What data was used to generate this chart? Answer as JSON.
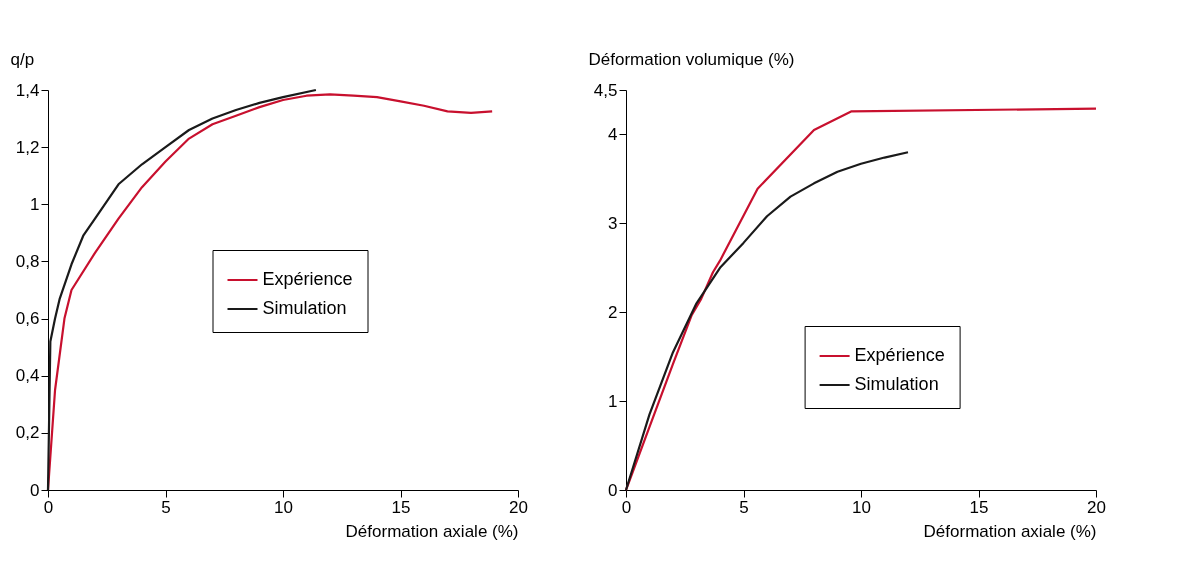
{
  "chart_data": [
    {
      "type": "line",
      "xlabel": "Déformation axiale (%)",
      "ylabel": "q/p",
      "xlim": [
        0,
        20
      ],
      "xticks": [
        0,
        5,
        10,
        15,
        20
      ],
      "ylim": [
        0,
        1.4
      ],
      "yticks": [
        0,
        {
          "value": 0.2,
          "label": "0,2"
        },
        {
          "value": 0.4,
          "label": "0,4"
        },
        {
          "value": 0.6,
          "label": "0,6"
        },
        {
          "value": 0.8,
          "label": "0,8"
        },
        1,
        {
          "value": 1.2,
          "label": "1,2"
        },
        {
          "value": 1.4,
          "label": "1,4"
        }
      ],
      "grid": false,
      "legend": "center",
      "line_style": "solid",
      "marker": "none",
      "series": [
        {
          "name": "Expérience",
          "color": "#c8102e",
          "x": [
            0,
            0.3,
            0.7,
            1,
            2,
            3,
            4,
            5,
            6,
            7,
            8,
            9,
            10,
            11,
            12,
            13,
            14,
            15,
            16,
            17,
            18,
            18.9
          ],
          "values": [
            0,
            0.35,
            0.6,
            0.7,
            0.83,
            0.95,
            1.06,
            1.15,
            1.23,
            1.28,
            1.31,
            1.34,
            1.365,
            1.38,
            1.385,
            1.38,
            1.375,
            1.36,
            1.345,
            1.325,
            1.32,
            1.325
          ]
        },
        {
          "name": "Simulation",
          "color": "#1a1a1a",
          "x": [
            0,
            0.1,
            0.3,
            0.5,
            1,
            1.5,
            2,
            3,
            4,
            5,
            6,
            7,
            8,
            9,
            10,
            11.4
          ],
          "values": [
            0,
            0.52,
            0.6,
            0.67,
            0.79,
            0.89,
            0.95,
            1.07,
            1.14,
            1.2,
            1.26,
            1.3,
            1.33,
            1.355,
            1.375,
            1.4
          ]
        }
      ]
    },
    {
      "type": "line",
      "xlabel": "Déformation axiale (%)",
      "ylabel": "Déformation volumique (%)",
      "xlim": [
        0,
        20
      ],
      "xticks": [
        0,
        5,
        10,
        15,
        20
      ],
      "ylim": [
        0,
        4.5
      ],
      "yticks": [
        0,
        1,
        2,
        3,
        4,
        {
          "value": 4.5,
          "label": "4,5"
        }
      ],
      "grid": false,
      "legend": "right",
      "line_style": "solid",
      "marker": "none",
      "series": [
        {
          "name": "Expérience",
          "color": "#c8102e",
          "x": [
            0,
            1,
            2,
            2.8,
            3.2,
            3.7,
            4.0,
            5.6,
            8.0,
            9.6,
            20
          ],
          "values": [
            0,
            0.71,
            1.42,
            1.97,
            2.15,
            2.45,
            2.58,
            3.39,
            4.05,
            4.26,
            4.29
          ]
        },
        {
          "name": "Simulation",
          "color": "#1a1a1a",
          "x": [
            0,
            1,
            2,
            3,
            4,
            5,
            6,
            7,
            8,
            9,
            10,
            11,
            12
          ],
          "values": [
            0,
            0.85,
            1.55,
            2.1,
            2.5,
            2.78,
            3.08,
            3.3,
            3.45,
            3.58,
            3.67,
            3.74,
            3.8
          ]
        }
      ]
    }
  ]
}
